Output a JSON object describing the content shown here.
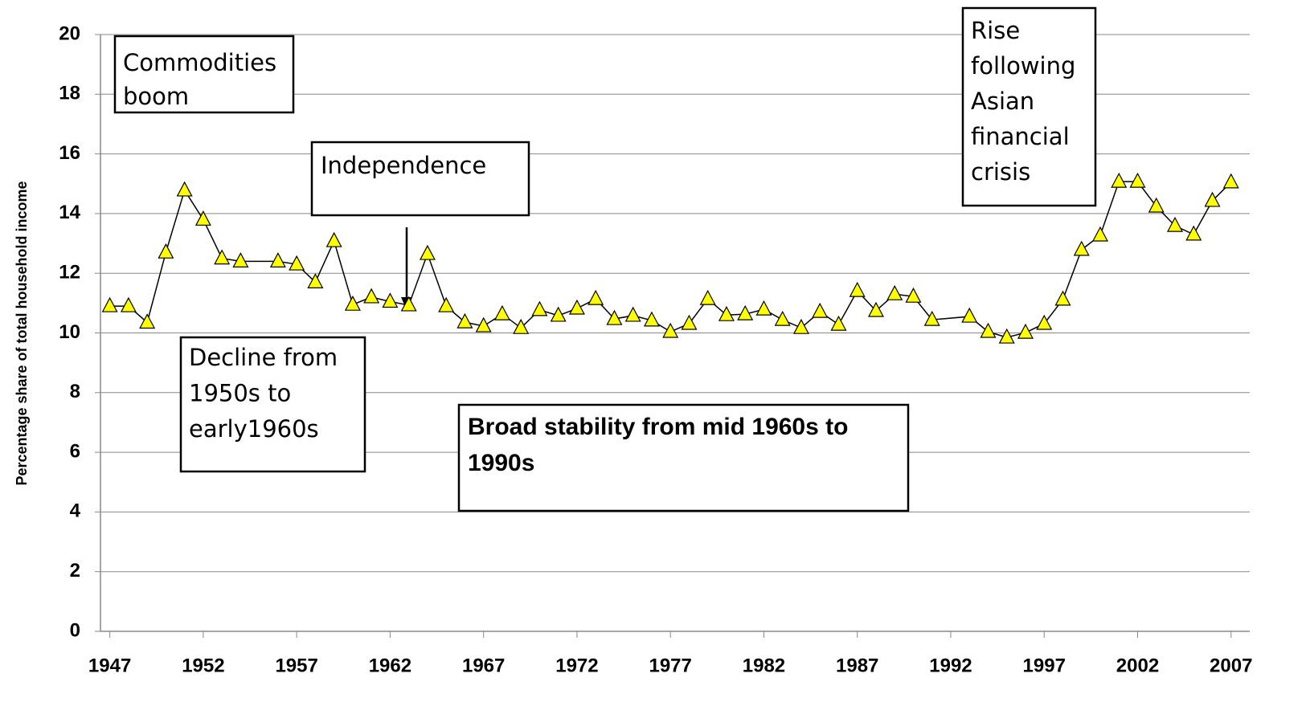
{
  "chart_data": {
    "type": "line",
    "y_label": "Percentage share of total household income",
    "x": [
      1947,
      1948,
      1949,
      1950,
      1951,
      1952,
      1953,
      1954,
      1956,
      1957,
      1958,
      1959,
      1960,
      1961,
      1962,
      1963,
      1964,
      1965,
      1966,
      1967,
      1968,
      1969,
      1970,
      1971,
      1972,
      1973,
      1974,
      1975,
      1976,
      1977,
      1978,
      1979,
      1980,
      1981,
      1982,
      1983,
      1984,
      1985,
      1986,
      1987,
      1988,
      1989,
      1990,
      1991,
      1993,
      1994,
      1995,
      1996,
      1997,
      1998,
      1999,
      2000,
      2001,
      2002,
      2003,
      2004,
      2005,
      2006,
      2007
    ],
    "series": [
      {
        "color": "#ffff00",
        "values": [
          10.9,
          10.9,
          10.35,
          12.7,
          14.78,
          13.8,
          12.5,
          12.4,
          12.4,
          12.3,
          11.7,
          13.08,
          10.95,
          11.2,
          11.05,
          10.93,
          12.65,
          10.9,
          10.36,
          10.23,
          10.63,
          10.17,
          10.77,
          10.58,
          10.82,
          11.14,
          10.47,
          10.58,
          10.42,
          10.04,
          10.31,
          11.14,
          10.6,
          10.63,
          10.79,
          10.44,
          10.17,
          10.71,
          10.28,
          11.41,
          10.74,
          11.3,
          11.22,
          10.44,
          10.55,
          10.04,
          9.85,
          10.01,
          10.31,
          11.12,
          12.79,
          13.27,
          15.07,
          15.07,
          14.24,
          13.59,
          13.3,
          14.43,
          15.05
        ]
      }
    ],
    "xlim": [
      1946.5,
      2008
    ],
    "xticks": [
      1947,
      1952,
      1957,
      1962,
      1967,
      1972,
      1977,
      1982,
      1987,
      1992,
      1997,
      2002,
      2007
    ],
    "ylim": [
      0,
      20
    ],
    "yticks": [
      0,
      2,
      4,
      6,
      8,
      10,
      12,
      14,
      16,
      18,
      20
    ],
    "grid": true,
    "annotations": [
      {
        "lines": [
          "Commodities",
          "boom"
        ]
      },
      {
        "lines": [
          "Independence"
        ]
      },
      {
        "lines": [
          "Rise",
          "following",
          "Asian",
          "financial",
          "crisis"
        ]
      },
      {
        "lines": [
          "Decline from",
          "1950s to",
          "early1960s"
        ]
      },
      {
        "lines": [
          "Broad stability from mid 1960s to",
          "1990s"
        ]
      }
    ]
  }
}
